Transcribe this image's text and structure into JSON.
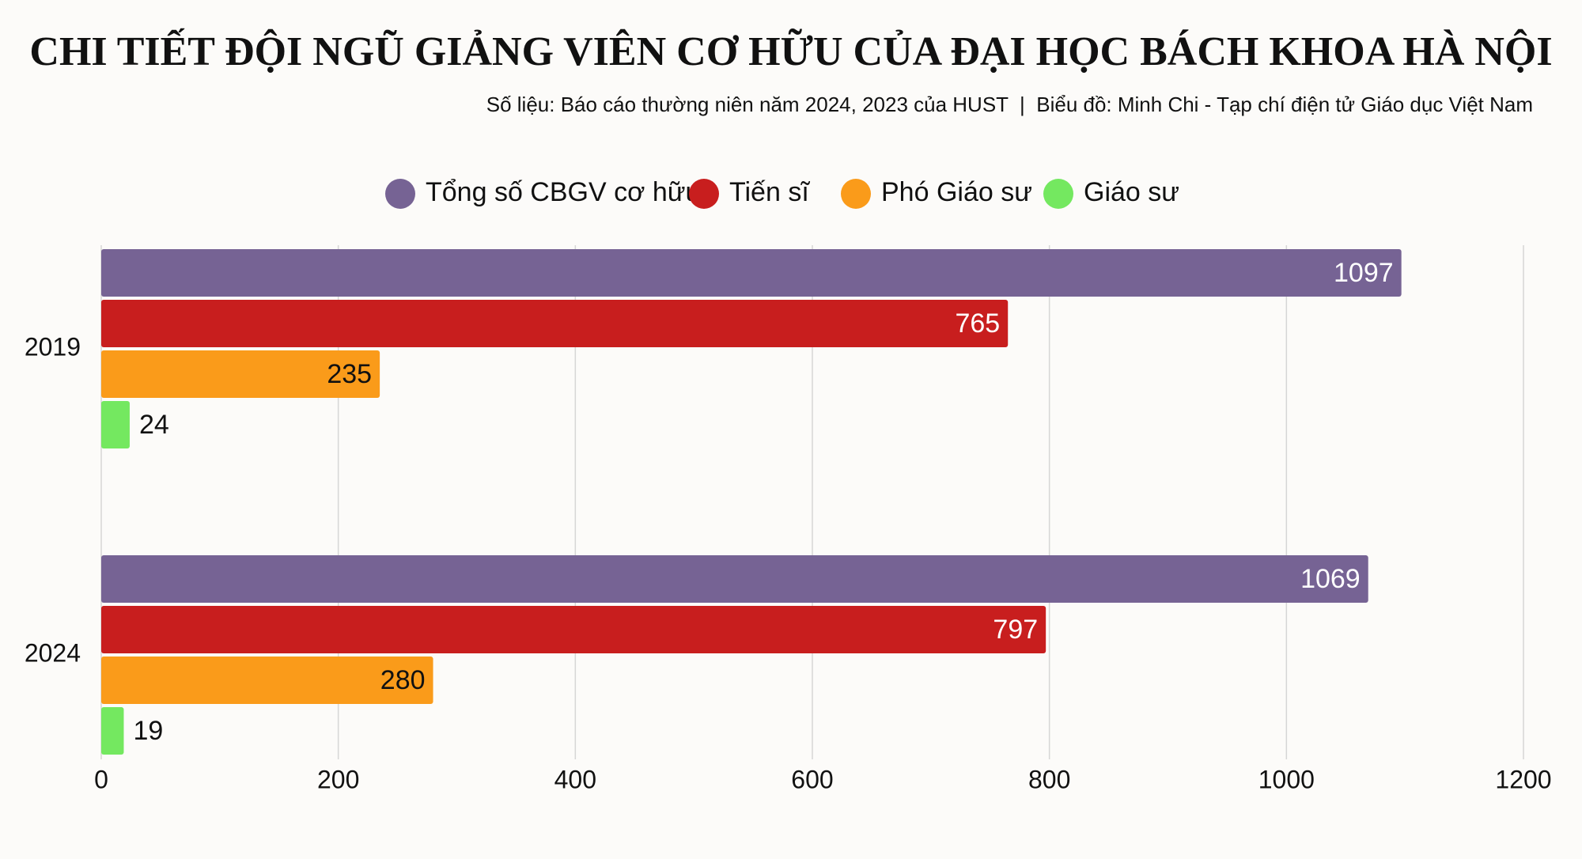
{
  "chart_data": {
    "type": "bar",
    "orientation": "horizontal",
    "title": "CHI TIẾT ĐỘI NGŨ GIẢNG VIÊN CƠ HỮU CỦA ĐẠI HỌC BÁCH KHOA HÀ NỘI",
    "subtitle": "Số liệu: Báo cáo thường niên năm 2024, 2023 của HUST  |  Biểu đồ: Minh Chi - Tạp chí điện tử Giáo dục Việt Nam",
    "categories": [
      "2019",
      "2024"
    ],
    "series": [
      {
        "name": "Tổng số CBGV cơ hữu",
        "color": "#766394",
        "values": [
          1097,
          1069
        ]
      },
      {
        "name": "Tiến sĩ",
        "color": "#c81e1e",
        "values": [
          765,
          797
        ]
      },
      {
        "name": "Phó Giáo sư",
        "color": "#fa9b1a",
        "values": [
          235,
          280
        ]
      },
      {
        "name": "Giáo sư",
        "color": "#74e860",
        "values": [
          24,
          19
        ]
      }
    ],
    "xlim": [
      0,
      1200
    ],
    "xticks": [
      0,
      200,
      400,
      600,
      800,
      1000,
      1200
    ],
    "grid": true,
    "legend": "top"
  }
}
